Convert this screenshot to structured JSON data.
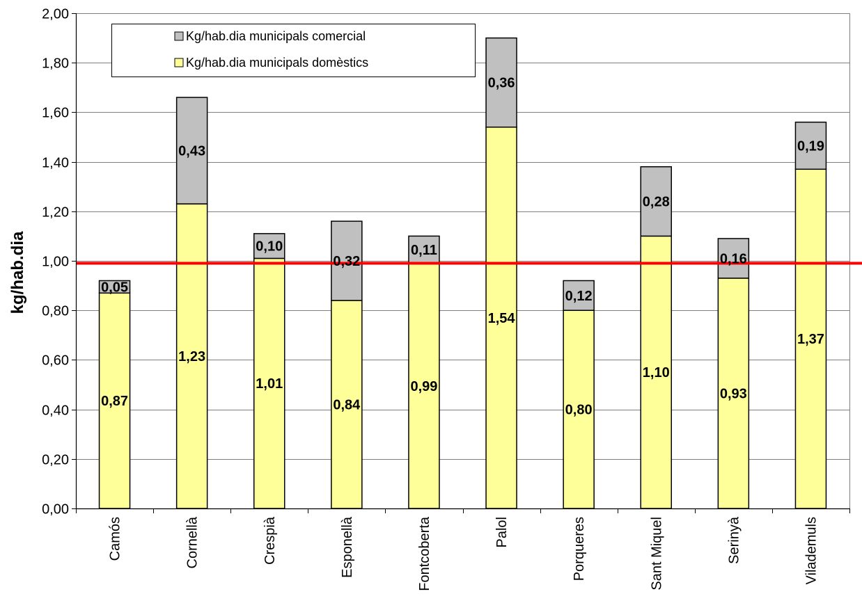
{
  "chart_data": {
    "type": "bar",
    "stacked": true,
    "title": "",
    "xlabel": "",
    "ylabel": "kg/hab.dia",
    "ylim": [
      0,
      2.0
    ],
    "ytick_step": 0.2,
    "ytick_labels": [
      "0,00",
      "0,20",
      "0,40",
      "0,60",
      "0,80",
      "1,00",
      "1,20",
      "1,40",
      "1,60",
      "1,80",
      "2,00"
    ],
    "grid": true,
    "legend_position": "top-left",
    "categories": [
      "Camós",
      "Cornellà",
      "Crespià",
      "Esponellà",
      "Fontcoberta",
      "Palol",
      "Porqueres",
      "Sant Miquel",
      "Serinyà",
      "Vilademuls"
    ],
    "series": [
      {
        "name": "Kg/hab.dia municipals domèstics",
        "color": "#FFFF99",
        "values": [
          0.87,
          1.23,
          1.01,
          0.84,
          0.99,
          1.54,
          0.8,
          1.1,
          0.93,
          1.37
        ],
        "labels": [
          "0,87",
          "1,23",
          "1,01",
          "0,84",
          "0,99",
          "1,54",
          "0,80",
          "1,10",
          "0,93",
          "1,37"
        ]
      },
      {
        "name": "Kg/hab.dia municipals comercial",
        "color": "#C0C0C0",
        "values": [
          0.05,
          0.43,
          0.1,
          0.32,
          0.11,
          0.36,
          0.12,
          0.28,
          0.16,
          0.19
        ],
        "labels": [
          "0,05",
          "0,43",
          "0,10",
          "0,32",
          "0,11",
          "0,36",
          "0,12",
          "0,28",
          "0,16",
          "0,19"
        ]
      }
    ],
    "legend_order": [
      1,
      0
    ],
    "reference_line": {
      "value": 0.99,
      "color": "#FF0000"
    }
  }
}
